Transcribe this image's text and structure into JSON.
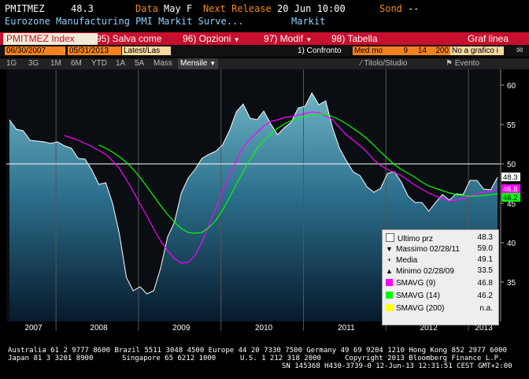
{
  "header": {
    "ticker": "PMITMEZ",
    "last_value": "48.3",
    "data_label": "Data",
    "data_value": "May F",
    "next_release_label": "Next Release",
    "next_release_value": "20 Jun 10:00",
    "survey_label": "Sond",
    "survey_value": "--"
  },
  "subtitle": {
    "name": "Eurozone Manufacturing PMI Markit Surve...",
    "source": "Markit"
  },
  "toolbar": {
    "index_name": "PMITMEZ Index",
    "save_as": "95) Salva come",
    "options": "96) Opzioni",
    "modify": "97) Modif",
    "table": "98) Tabella",
    "graph_label": "Graf linea"
  },
  "range_bar": {
    "start_date": "06/30/2007",
    "end_date": "05/31/2013",
    "last_select": "Latest/Las",
    "compare_label": "1) Confronto",
    "compare_type": "Med mo",
    "p1": "9",
    "p2": "14",
    "p3": "200",
    "no_chart": "No a grafico i"
  },
  "period_bar": {
    "periods": [
      "1G",
      "3G",
      "1M",
      "6M",
      "YTD",
      "1A",
      "5A",
      "Mass"
    ],
    "frequency": "Mensile",
    "title_study": "Titolo/Studio",
    "event": "Evento"
  },
  "legend": {
    "last_price_label": "Ultimo prz",
    "last_price_value": "48.3",
    "max_label": "Massimo 02/28/11",
    "max_value": "59.0",
    "mean_label": "Media",
    "mean_value": "49.1",
    "min_label": "Minimo 02/28/09",
    "min_value": "33.5",
    "sma9_label": "SMAVG (9)",
    "sma9_value": "46.8",
    "sma14_label": "SMAVG (14)",
    "sma14_value": "46.2",
    "sma200_label": "SMAVG (200)",
    "sma200_value": "n.a."
  },
  "colors": {
    "orange": "#f28a1a",
    "toolbar_red": "#c8102e",
    "price_line": "#ffffff",
    "sma9": "#ff00ff",
    "sma14": "#00ff00",
    "sma200": "#ffff00",
    "area_top": "#5fa6b8",
    "area_bottom": "#0a1f33"
  },
  "chart_data": {
    "type": "line",
    "x": [
      "2007-06",
      "2007-07",
      "2007-08",
      "2007-09",
      "2007-10",
      "2007-11",
      "2007-12",
      "2008-01",
      "2008-02",
      "2008-03",
      "2008-04",
      "2008-05",
      "2008-06",
      "2008-07",
      "2008-08",
      "2008-09",
      "2008-10",
      "2008-11",
      "2008-12",
      "2009-01",
      "2009-02",
      "2009-03",
      "2009-04",
      "2009-05",
      "2009-06",
      "2009-07",
      "2009-08",
      "2009-09",
      "2009-10",
      "2009-11",
      "2009-12",
      "2010-01",
      "2010-02",
      "2010-03",
      "2010-04",
      "2010-05",
      "2010-06",
      "2010-07",
      "2010-08",
      "2010-09",
      "2010-10",
      "2010-11",
      "2010-12",
      "2011-01",
      "2011-02",
      "2011-03",
      "2011-04",
      "2011-05",
      "2011-06",
      "2011-07",
      "2011-08",
      "2011-09",
      "2011-10",
      "2011-11",
      "2011-12",
      "2012-01",
      "2012-02",
      "2012-03",
      "2012-04",
      "2012-05",
      "2012-06",
      "2012-07",
      "2012-08",
      "2012-09",
      "2012-10",
      "2012-11",
      "2012-12",
      "2013-01",
      "2013-02",
      "2013-03",
      "2013-04",
      "2013-05"
    ],
    "series": [
      {
        "name": "Ultimo prz",
        "values": [
          55.6,
          54.4,
          54.2,
          53.0,
          52.9,
          52.8,
          52.6,
          52.8,
          52.3,
          52.0,
          50.7,
          50.6,
          49.2,
          47.4,
          47.6,
          45.0,
          41.1,
          35.6,
          33.9,
          34.4,
          33.5,
          33.9,
          36.8,
          40.7,
          42.6,
          46.3,
          48.2,
          49.3,
          50.7,
          51.2,
          51.6,
          52.4,
          54.2,
          56.6,
          57.6,
          55.8,
          55.6,
          56.7,
          55.1,
          53.7,
          54.6,
          55.3,
          57.1,
          57.3,
          59.0,
          57.5,
          58.0,
          54.6,
          52.0,
          50.4,
          49.0,
          48.5,
          47.1,
          46.4,
          46.9,
          48.8,
          49.0,
          47.7,
          45.9,
          45.1,
          45.1,
          44.0,
          45.1,
          46.1,
          45.4,
          46.2,
          46.1,
          47.9,
          47.9,
          46.8,
          46.7,
          48.3
        ]
      },
      {
        "name": "SMAVG (9)",
        "values": [
          null,
          null,
          null,
          null,
          null,
          null,
          null,
          null,
          53.6,
          53.3,
          53.0,
          52.6,
          52.2,
          51.7,
          51.2,
          50.4,
          49.4,
          48.0,
          46.5,
          44.9,
          43.4,
          41.7,
          40.2,
          39.0,
          38.0,
          37.4,
          37.5,
          38.4,
          40.1,
          42.2,
          44.3,
          46.5,
          48.5,
          50.4,
          52.1,
          53.2,
          54.0,
          54.8,
          55.4,
          55.6,
          55.9,
          56.0,
          56.2,
          56.4,
          56.6,
          56.5,
          56.1,
          55.6,
          54.6,
          53.7,
          53.0,
          52.3,
          51.5,
          50.5,
          49.8,
          49.3,
          48.9,
          48.5,
          47.9,
          47.3,
          46.8,
          46.3,
          45.9,
          45.6,
          45.3,
          45.4,
          45.6,
          45.9,
          46.2,
          46.4,
          46.5,
          46.8
        ]
      },
      {
        "name": "SMAVG (14)",
        "values": [
          null,
          null,
          null,
          null,
          null,
          null,
          null,
          null,
          null,
          null,
          null,
          null,
          null,
          52.4,
          52.0,
          51.5,
          50.9,
          50.2,
          49.3,
          48.3,
          47.1,
          45.9,
          44.7,
          43.6,
          42.6,
          41.8,
          41.3,
          41.2,
          41.3,
          41.9,
          42.8,
          44.1,
          45.7,
          47.4,
          49.0,
          50.5,
          51.9,
          53.0,
          53.8,
          54.5,
          55.1,
          55.5,
          55.8,
          56.0,
          56.2,
          56.3,
          56.3,
          56.0,
          55.6,
          55.1,
          54.5,
          53.9,
          53.2,
          52.4,
          51.5,
          50.7,
          49.9,
          49.3,
          48.8,
          48.3,
          47.7,
          47.2,
          46.9,
          46.6,
          46.3,
          46.1,
          46.0,
          45.9,
          45.9,
          46.0,
          46.1,
          46.2
        ]
      }
    ],
    "x_tick_labels": [
      "2007",
      "2008",
      "2009",
      "2010",
      "2011",
      "2012",
      "2013"
    ],
    "y_ticks": [
      35,
      40,
      45,
      50,
      55,
      60
    ],
    "ylim": [
      30,
      62
    ],
    "reference_line": 50,
    "grid": false,
    "legend_position": "bottom-right",
    "value_tags": [
      {
        "label": "48.3",
        "series": "Ultimo prz"
      },
      {
        "label": "46.8",
        "series": "SMAVG (9)"
      },
      {
        "label": "46.2",
        "series": "SMAVG (14)"
      }
    ]
  },
  "footer": {
    "line1": "Australia 61 2 9777 8600 Brazil 5511 3048 4500 Europe 44 20 7330 7500 Germany 49 69 9204 1210 Hong Kong 852 2977 6000",
    "line2a": "Japan 81 3 3201 8900",
    "line2b": "Singapore 65 6212 1000",
    "line2c": "U.S. 1 212 318 2000",
    "line2d": "Copyright 2013 Bloomberg Finance L.P.",
    "line3": "SN 145368 H430-3739-0 12-Jun-13 12:31:51 CEST GMT+2:00"
  }
}
